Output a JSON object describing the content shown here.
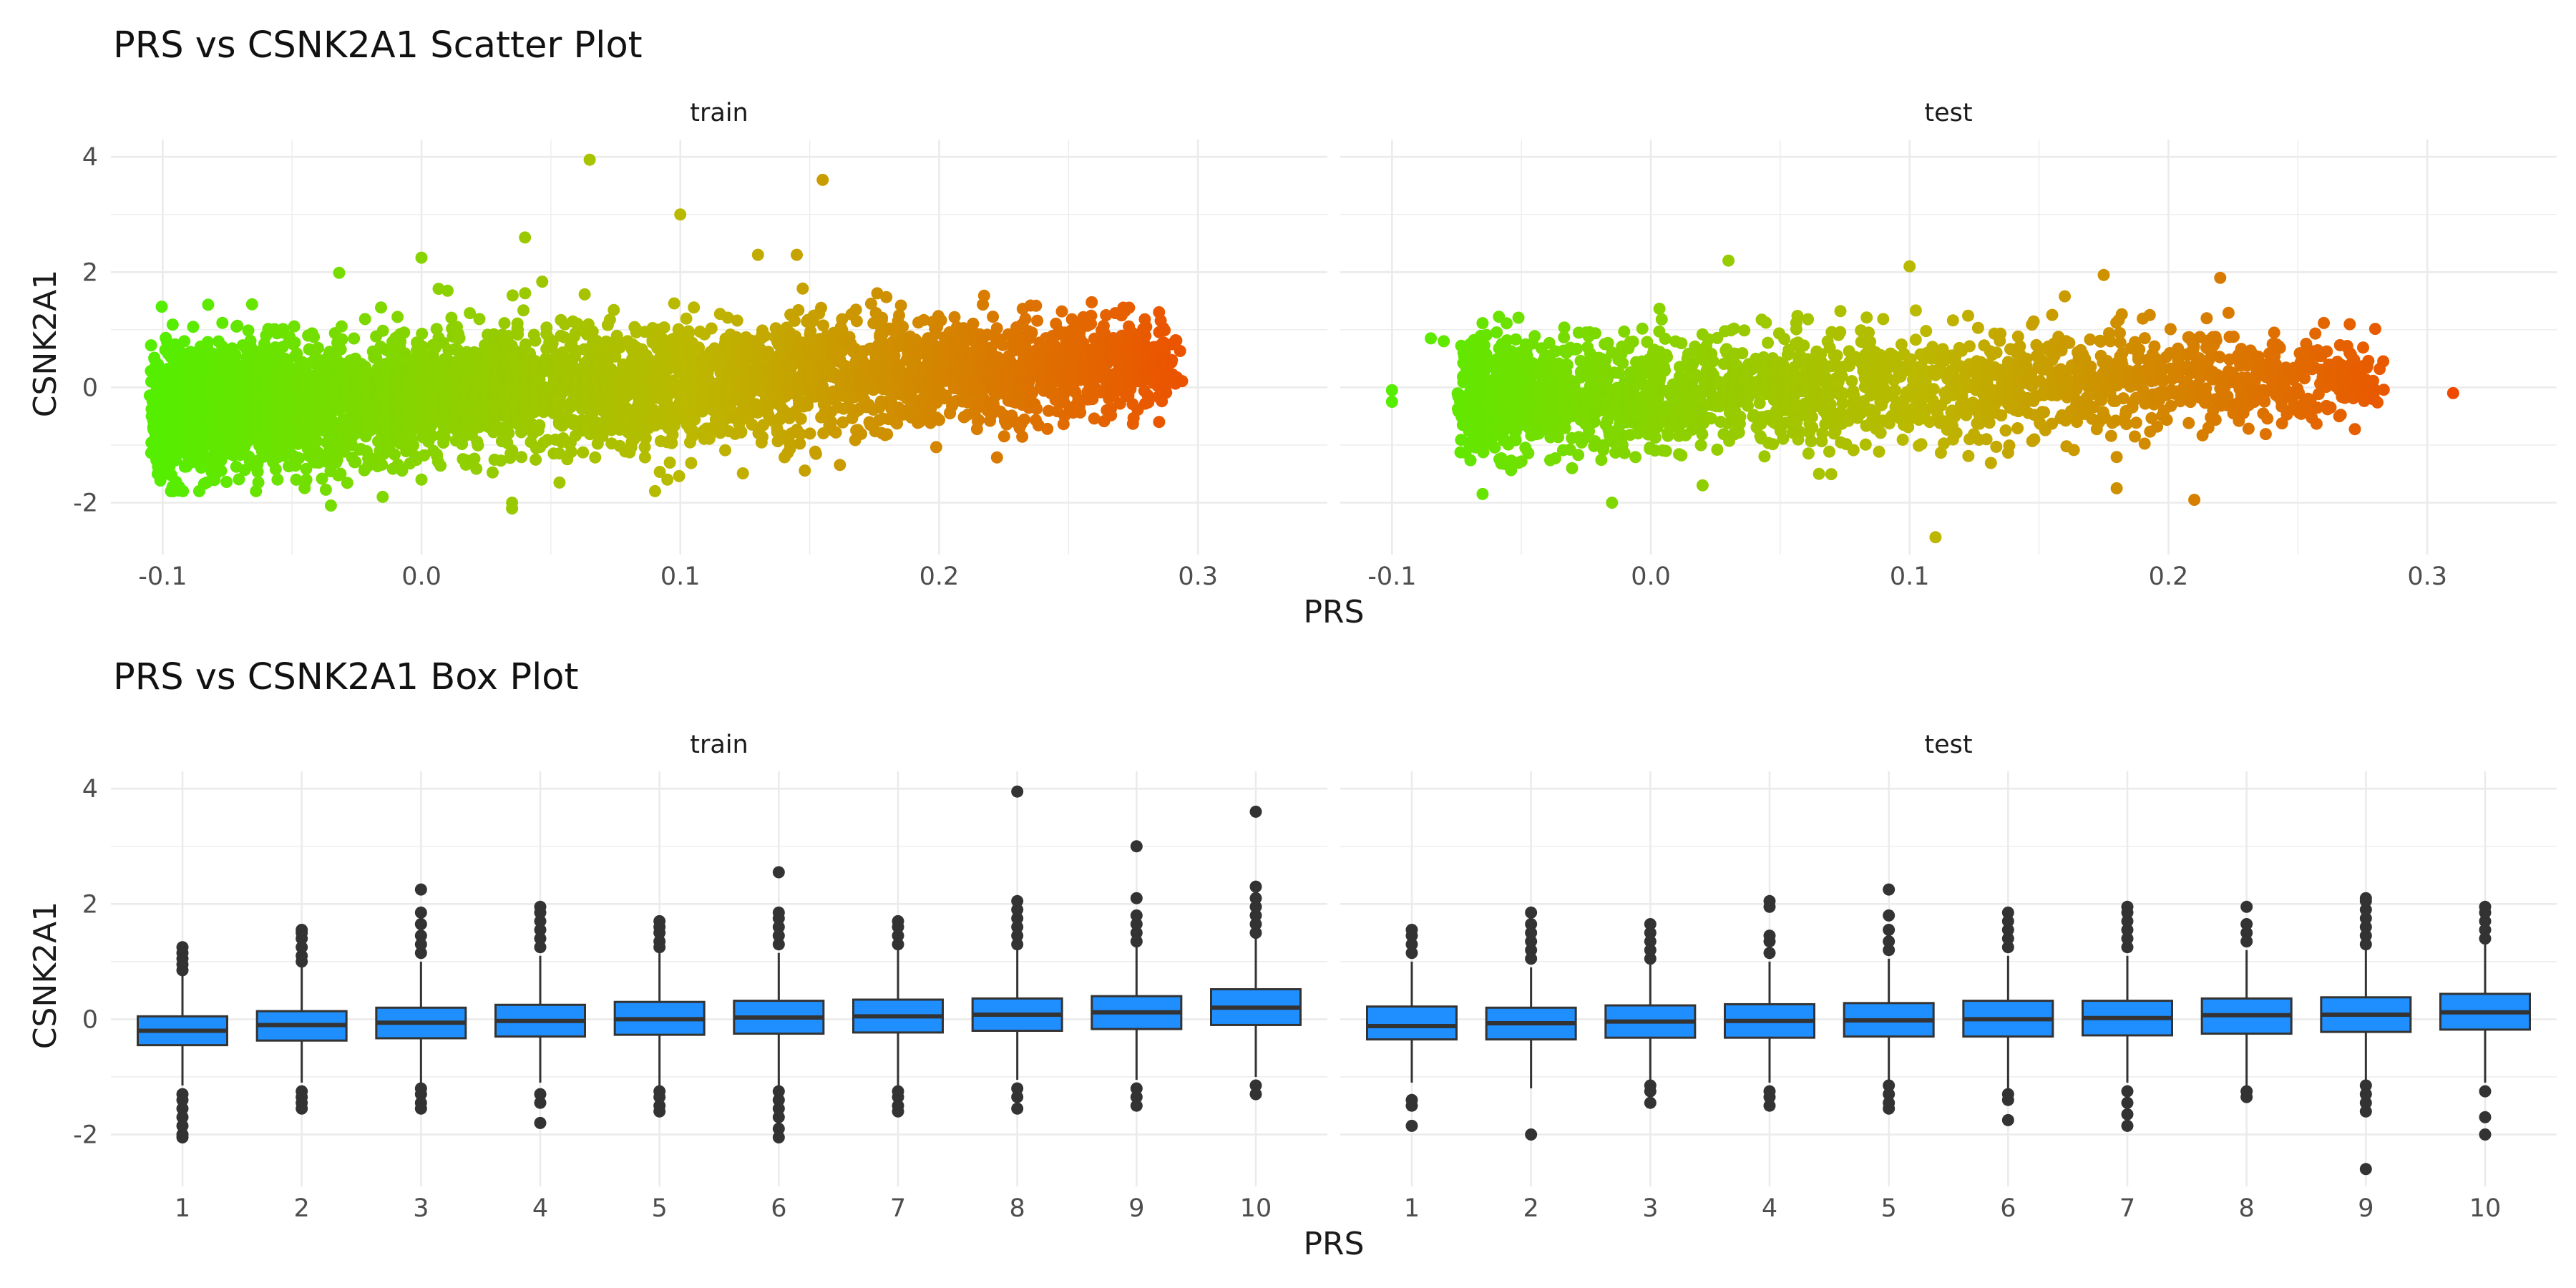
{
  "chart_data": [
    {
      "type": "scatter",
      "title": "PRS vs CSNK2A1 Scatter Plot",
      "xlabel": "PRS",
      "ylabel": "CSNK2A1",
      "facets": [
        "train",
        "test"
      ],
      "xlim": [
        -0.12,
        0.35
      ],
      "ylim": [
        -2.9,
        4.3
      ],
      "x_ticks": [
        -0.1,
        0.0,
        0.1,
        0.2,
        0.3
      ],
      "x_tick_labels": [
        "-0.1",
        "0.0",
        "0.1",
        "0.2",
        "0.3"
      ],
      "y_ticks": [
        -2,
        0,
        2,
        4
      ],
      "y_tick_labels": [
        "-2",
        "0",
        "2",
        "4"
      ],
      "color_low": "#55ee00",
      "color_mid": "#bcb800",
      "color_high": "#f04a00",
      "color_range": [
        -0.1,
        0.31
      ],
      "dense_cloud": {
        "train": {
          "x_min": -0.1,
          "x_max": 0.29,
          "y_center": -0.05,
          "slope": 2.2,
          "n": 4500,
          "y_spread": 0.55
        },
        "test": {
          "x_min": -0.07,
          "x_max": 0.28,
          "y_center": -0.05,
          "slope": 1.2,
          "n": 2200,
          "y_spread": 0.5
        }
      },
      "outliers": {
        "train": [
          [
            0.065,
            3.95
          ],
          [
            0.155,
            3.6
          ],
          [
            0.1,
            3.0
          ],
          [
            0.04,
            2.6
          ],
          [
            0.0,
            2.25
          ],
          [
            0.13,
            2.3
          ],
          [
            0.145,
            2.3
          ],
          [
            -0.045,
            -1.65
          ],
          [
            -0.035,
            -2.05
          ],
          [
            0.035,
            -2.0
          ],
          [
            0.035,
            -2.1
          ],
          [
            -0.015,
            -1.9
          ],
          [
            0.0,
            -1.6
          ],
          [
            0.095,
            -1.6
          ],
          [
            0.29,
            0.75
          ],
          [
            0.285,
            -0.6
          ],
          [
            0.28,
            1.05
          ],
          [
            0.27,
            0.45
          ],
          [
            -0.1,
            -0.55
          ],
          [
            -0.085,
            -1.2
          ]
        ],
        "test": [
          [
            0.11,
            -2.6
          ],
          [
            0.21,
            -1.95
          ],
          [
            0.18,
            -1.75
          ],
          [
            -0.015,
            -2.0
          ],
          [
            -0.065,
            -1.85
          ],
          [
            0.03,
            2.2
          ],
          [
            -0.1,
            -0.05
          ],
          [
            -0.1,
            -0.25
          ],
          [
            0.31,
            -0.1
          ],
          [
            0.28,
            -0.05
          ],
          [
            0.27,
            0.6
          ],
          [
            0.22,
            1.9
          ],
          [
            0.175,
            1.95
          ],
          [
            -0.085,
            0.85
          ],
          [
            -0.08,
            0.8
          ],
          [
            0.1,
            2.1
          ],
          [
            0.02,
            -1.7
          ],
          [
            0.065,
            -1.5
          ]
        ]
      }
    },
    {
      "type": "box",
      "title": "PRS vs CSNK2A1 Box Plot",
      "xlabel": "PRS",
      "ylabel": "CSNK2A1",
      "facets": [
        "train",
        "test"
      ],
      "categories": [
        "1",
        "2",
        "3",
        "4",
        "5",
        "6",
        "7",
        "8",
        "9",
        "10"
      ],
      "ylim": [
        -2.9,
        4.3
      ],
      "y_ticks": [
        -2,
        0,
        2,
        4
      ],
      "y_tick_labels": [
        "-2",
        "0",
        "2",
        "4"
      ],
      "fill_color": "#1f8fff",
      "series": [
        {
          "name": "train",
          "q1": [
            -0.45,
            -0.37,
            -0.33,
            -0.3,
            -0.27,
            -0.25,
            -0.23,
            -0.2,
            -0.17,
            -0.1
          ],
          "median": [
            -0.2,
            -0.1,
            -0.06,
            -0.03,
            0.0,
            0.03,
            0.05,
            0.08,
            0.12,
            0.2
          ],
          "q3": [
            0.05,
            0.14,
            0.2,
            0.25,
            0.3,
            0.32,
            0.34,
            0.36,
            0.4,
            0.52
          ],
          "whisker_low": [
            -1.15,
            -1.1,
            -1.1,
            -1.1,
            -1.15,
            -1.15,
            -1.15,
            -1.05,
            -1.05,
            -1.0
          ],
          "whisker_high": [
            0.75,
            0.9,
            1.0,
            1.1,
            1.15,
            1.15,
            1.2,
            1.2,
            1.25,
            1.4
          ],
          "outliers": [
            [
              -1.3,
              -1.4,
              -1.55,
              -1.7,
              -1.85,
              -2.0,
              -2.05,
              0.85,
              0.95,
              1.05,
              1.15,
              1.25
            ],
            [
              -1.25,
              -1.35,
              -1.45,
              -1.55,
              1.0,
              1.1,
              1.25,
              1.4,
              1.5,
              1.55
            ],
            [
              -1.2,
              -1.3,
              -1.45,
              -1.55,
              1.15,
              1.3,
              1.45,
              1.65,
              1.85,
              2.25
            ],
            [
              -1.3,
              -1.45,
              -1.8,
              1.25,
              1.4,
              1.55,
              1.7,
              1.85,
              1.95
            ],
            [
              -1.25,
              -1.35,
              -1.5,
              -1.6,
              1.25,
              1.35,
              1.5,
              1.6,
              1.7
            ],
            [
              -1.25,
              -1.4,
              -1.55,
              -1.7,
              -1.9,
              -2.05,
              1.3,
              1.45,
              1.6,
              1.75,
              1.85,
              2.55
            ],
            [
              -1.25,
              -1.35,
              -1.5,
              -1.6,
              1.3,
              1.45,
              1.6,
              1.7
            ],
            [
              -1.2,
              -1.35,
              -1.55,
              1.3,
              1.45,
              1.6,
              1.75,
              1.9,
              2.05,
              3.95
            ],
            [
              -1.2,
              -1.35,
              -1.5,
              1.35,
              1.5,
              1.65,
              1.8,
              2.1,
              3.0
            ],
            [
              -1.15,
              -1.3,
              1.5,
              1.65,
              1.8,
              1.95,
              2.1,
              2.3,
              3.6
            ]
          ]
        },
        {
          "name": "test",
          "q1": [
            -0.35,
            -0.35,
            -0.32,
            -0.32,
            -0.3,
            -0.3,
            -0.28,
            -0.25,
            -0.22,
            -0.18
          ],
          "median": [
            -0.12,
            -0.07,
            -0.04,
            -0.03,
            -0.02,
            0.0,
            0.02,
            0.07,
            0.08,
            0.12
          ],
          "q3": [
            0.22,
            0.2,
            0.24,
            0.26,
            0.28,
            0.32,
            0.32,
            0.36,
            0.38,
            0.44
          ],
          "whisker_low": [
            -1.1,
            -1.2,
            -1.05,
            -1.1,
            -1.05,
            -1.2,
            -1.1,
            -1.15,
            -1.05,
            -1.1
          ],
          "whisker_high": [
            1.0,
            0.9,
            0.95,
            1.0,
            1.05,
            1.1,
            1.1,
            1.2,
            1.2,
            1.3
          ],
          "outliers": [
            [
              -1.4,
              -1.5,
              -1.85,
              1.15,
              1.3,
              1.45,
              1.55
            ],
            [
              -2.0,
              1.05,
              1.2,
              1.35,
              1.5,
              1.65,
              1.85
            ],
            [
              -1.15,
              -1.25,
              -1.45,
              1.05,
              1.2,
              1.35,
              1.5,
              1.65
            ],
            [
              -1.25,
              -1.35,
              -1.5,
              1.15,
              1.35,
              1.45,
              1.95,
              2.05
            ],
            [
              -1.15,
              -1.3,
              -1.45,
              -1.55,
              1.2,
              1.35,
              1.55,
              1.8,
              2.25
            ],
            [
              -1.3,
              -1.4,
              -1.75,
              1.25,
              1.4,
              1.55,
              1.7,
              1.85
            ],
            [
              -1.25,
              -1.45,
              -1.65,
              -1.85,
              1.25,
              1.4,
              1.55,
              1.7,
              1.85,
              1.95
            ],
            [
              -1.25,
              -1.35,
              1.35,
              1.5,
              1.65,
              1.95
            ],
            [
              -1.15,
              -1.3,
              -1.45,
              -1.6,
              -2.6,
              1.3,
              1.45,
              1.6,
              1.75,
              1.9,
              2.05,
              2.1
            ],
            [
              -1.25,
              -1.7,
              -2.0,
              1.4,
              1.55,
              1.7,
              1.85,
              1.95
            ]
          ]
        }
      ]
    }
  ]
}
